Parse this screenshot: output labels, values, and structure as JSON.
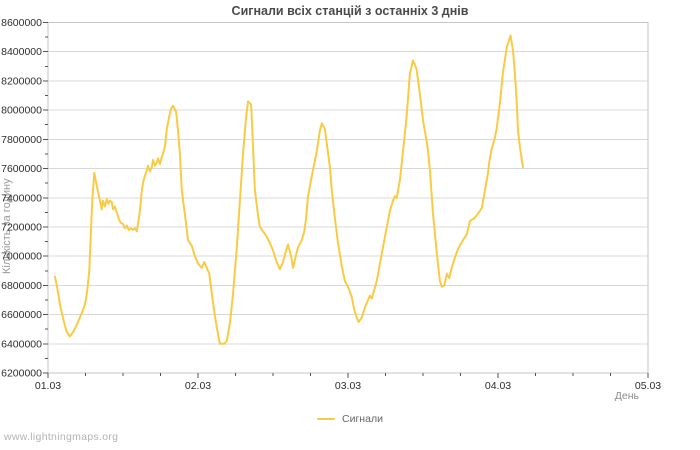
{
  "watermark": {
    "text": "www.lightningmaps.org"
  },
  "chart_data": {
    "type": "line",
    "title": "Сигнали всіх станцій з останніх 3 днів",
    "xlabel": "День",
    "ylabel": "Кількість за годину",
    "grid": "horizontal-major-only",
    "legend_position": "bottom-center",
    "x_axis": {
      "unit": "hours since 01.03 00:00",
      "min": 0,
      "max": 96,
      "major_tick_step": 24,
      "minor_tick_step": 6,
      "major_tick_labels": [
        "01.03",
        "02.03",
        "03.03",
        "04.03",
        "05.03"
      ]
    },
    "y_axis": {
      "min": 6200000,
      "max": 8600000,
      "major_tick_step": 200000,
      "minor_tick_step": 100000
    },
    "colors": {
      "line": "#f9cb45",
      "grid": "#d8d8d8",
      "plot_border": "#c6c6c6",
      "tick": "#555555",
      "tick_label": "#2e2e2e",
      "title": "#4a4a4a",
      "axis_title": "#9a9a9a",
      "legend_label": "#666666",
      "watermark": "#b4b4b4",
      "background": "#ffffff"
    },
    "series": [
      {
        "name": "Сигнали",
        "color": "#f9cb45",
        "points": [
          [
            1.1,
            6860000
          ],
          [
            1.4,
            6800000
          ],
          [
            2.0,
            6650000
          ],
          [
            2.6,
            6540000
          ],
          [
            3.0,
            6480000
          ],
          [
            3.5,
            6450000
          ],
          [
            4.0,
            6480000
          ],
          [
            4.6,
            6530000
          ],
          [
            5.1,
            6580000
          ],
          [
            5.6,
            6630000
          ],
          [
            5.9,
            6670000
          ],
          [
            6.2,
            6740000
          ],
          [
            6.6,
            6900000
          ],
          [
            6.9,
            7200000
          ],
          [
            7.1,
            7400000
          ],
          [
            7.4,
            7570000
          ],
          [
            7.8,
            7480000
          ],
          [
            8.3,
            7380000
          ],
          [
            8.6,
            7320000
          ],
          [
            8.8,
            7380000
          ],
          [
            9.1,
            7340000
          ],
          [
            9.4,
            7390000
          ],
          [
            9.7,
            7360000
          ],
          [
            9.9,
            7380000
          ],
          [
            10.2,
            7370000
          ],
          [
            10.4,
            7320000
          ],
          [
            10.7,
            7340000
          ],
          [
            11.0,
            7300000
          ],
          [
            11.3,
            7260000
          ],
          [
            11.6,
            7230000
          ],
          [
            12.0,
            7220000
          ],
          [
            12.3,
            7190000
          ],
          [
            12.6,
            7210000
          ],
          [
            12.9,
            7180000
          ],
          [
            13.3,
            7190000
          ],
          [
            13.6,
            7180000
          ],
          [
            13.9,
            7190000
          ],
          [
            14.2,
            7170000
          ],
          [
            14.4,
            7220000
          ],
          [
            14.7,
            7310000
          ],
          [
            15.0,
            7450000
          ],
          [
            15.3,
            7520000
          ],
          [
            15.8,
            7590000
          ],
          [
            16.0,
            7620000
          ],
          [
            16.3,
            7580000
          ],
          [
            16.6,
            7610000
          ],
          [
            16.8,
            7660000
          ],
          [
            17.1,
            7620000
          ],
          [
            17.4,
            7640000
          ],
          [
            17.6,
            7670000
          ],
          [
            17.9,
            7630000
          ],
          [
            18.2,
            7680000
          ],
          [
            18.4,
            7700000
          ],
          [
            18.7,
            7750000
          ],
          [
            19.0,
            7870000
          ],
          [
            19.4,
            7960000
          ],
          [
            19.7,
            8010000
          ],
          [
            20.0,
            8030000
          ],
          [
            20.5,
            7990000
          ],
          [
            20.8,
            7860000
          ],
          [
            21.1,
            7700000
          ],
          [
            21.4,
            7450000
          ],
          [
            22.1,
            7220000
          ],
          [
            22.4,
            7110000
          ],
          [
            23.0,
            7070000
          ],
          [
            23.5,
            7000000
          ],
          [
            24.0,
            6950000
          ],
          [
            24.6,
            6920000
          ],
          [
            25.0,
            6960000
          ],
          [
            25.4,
            6920000
          ],
          [
            25.8,
            6880000
          ],
          [
            26.1,
            6780000
          ],
          [
            26.6,
            6620000
          ],
          [
            27.0,
            6510000
          ],
          [
            27.5,
            6400000
          ],
          [
            28.2,
            6400000
          ],
          [
            28.6,
            6420000
          ],
          [
            29.1,
            6540000
          ],
          [
            29.6,
            6740000
          ],
          [
            30.2,
            7060000
          ],
          [
            30.7,
            7380000
          ],
          [
            31.2,
            7700000
          ],
          [
            31.7,
            7950000
          ],
          [
            32.0,
            8060000
          ],
          [
            32.5,
            8040000
          ],
          [
            32.8,
            7750000
          ],
          [
            33.1,
            7450000
          ],
          [
            33.6,
            7280000
          ],
          [
            33.9,
            7200000
          ],
          [
            34.4,
            7170000
          ],
          [
            34.9,
            7140000
          ],
          [
            35.5,
            7090000
          ],
          [
            36.0,
            7040000
          ],
          [
            36.5,
            6970000
          ],
          [
            37.1,
            6910000
          ],
          [
            37.6,
            6960000
          ],
          [
            38.1,
            7040000
          ],
          [
            38.4,
            7080000
          ],
          [
            38.9,
            7000000
          ],
          [
            39.2,
            6920000
          ],
          [
            39.7,
            7010000
          ],
          [
            40.0,
            7060000
          ],
          [
            40.6,
            7110000
          ],
          [
            41.0,
            7170000
          ],
          [
            41.3,
            7260000
          ],
          [
            41.6,
            7410000
          ],
          [
            41.9,
            7480000
          ],
          [
            42.4,
            7590000
          ],
          [
            43.0,
            7720000
          ],
          [
            43.5,
            7860000
          ],
          [
            43.8,
            7910000
          ],
          [
            44.3,
            7870000
          ],
          [
            44.6,
            7770000
          ],
          [
            45.1,
            7610000
          ],
          [
            45.4,
            7450000
          ],
          [
            45.9,
            7260000
          ],
          [
            46.4,
            7090000
          ],
          [
            47.0,
            6930000
          ],
          [
            47.5,
            6830000
          ],
          [
            48.0,
            6790000
          ],
          [
            48.6,
            6720000
          ],
          [
            49.0,
            6630000
          ],
          [
            49.4,
            6580000
          ],
          [
            49.7,
            6550000
          ],
          [
            50.2,
            6580000
          ],
          [
            50.7,
            6650000
          ],
          [
            51.5,
            6730000
          ],
          [
            51.8,
            6710000
          ],
          [
            52.0,
            6740000
          ],
          [
            52.6,
            6830000
          ],
          [
            53.1,
            6950000
          ],
          [
            53.6,
            7060000
          ],
          [
            54.2,
            7200000
          ],
          [
            54.7,
            7310000
          ],
          [
            55.2,
            7380000
          ],
          [
            55.5,
            7410000
          ],
          [
            55.8,
            7400000
          ],
          [
            56.3,
            7520000
          ],
          [
            56.8,
            7720000
          ],
          [
            57.1,
            7840000
          ],
          [
            57.4,
            7970000
          ],
          [
            57.9,
            8250000
          ],
          [
            58.4,
            8340000
          ],
          [
            58.9,
            8290000
          ],
          [
            59.0,
            8270000
          ],
          [
            59.5,
            8110000
          ],
          [
            60.0,
            7930000
          ],
          [
            60.5,
            7810000
          ],
          [
            60.8,
            7720000
          ],
          [
            61.1,
            7590000
          ],
          [
            61.6,
            7290000
          ],
          [
            62.2,
            7020000
          ],
          [
            62.7,
            6830000
          ],
          [
            63.0,
            6790000
          ],
          [
            63.4,
            6800000
          ],
          [
            63.8,
            6880000
          ],
          [
            64.2,
            6850000
          ],
          [
            64.6,
            6920000
          ],
          [
            65.1,
            6990000
          ],
          [
            65.6,
            7050000
          ],
          [
            66.4,
            7110000
          ],
          [
            67.0,
            7150000
          ],
          [
            67.5,
            7240000
          ],
          [
            68.2,
            7260000
          ],
          [
            68.8,
            7290000
          ],
          [
            69.4,
            7330000
          ],
          [
            69.9,
            7450000
          ],
          [
            70.4,
            7570000
          ],
          [
            70.6,
            7640000
          ],
          [
            71.0,
            7740000
          ],
          [
            71.5,
            7810000
          ],
          [
            71.8,
            7880000
          ],
          [
            72.3,
            8050000
          ],
          [
            72.8,
            8260000
          ],
          [
            73.4,
            8430000
          ],
          [
            74.0,
            8510000
          ],
          [
            74.4,
            8410000
          ],
          [
            74.7,
            8250000
          ],
          [
            75.0,
            8040000
          ],
          [
            75.2,
            7860000
          ],
          [
            75.5,
            7750000
          ],
          [
            75.8,
            7660000
          ],
          [
            76.0,
            7610000
          ]
        ]
      }
    ]
  }
}
